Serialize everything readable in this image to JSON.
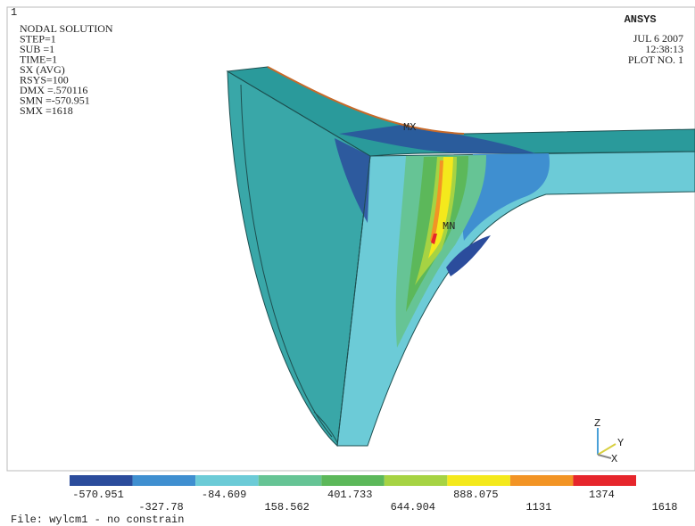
{
  "corner_label": "1",
  "info": [
    "NODAL SOLUTION",
    "STEP=1",
    "SUB =1",
    "TIME=1",
    "SX        (AVG)",
    "RSYS=100",
    "DMX =.570116",
    "SMN =-570.951",
    "SMX =1618"
  ],
  "logo": {
    "bold": "AN",
    "light": "SYS"
  },
  "stamp": [
    "JUL  6 2007",
    "12:38:13",
    "PLOT NO.   1"
  ],
  "markers": {
    "max": "MX",
    "min": "MN"
  },
  "triad": {
    "z": "Z",
    "y": "Y",
    "x": "X"
  },
  "legend": {
    "colors": [
      "#2b4c9c",
      "#3f8fd0",
      "#6ccbd7",
      "#66c495",
      "#5cb85a",
      "#a6d343",
      "#f4e91c",
      "#f29425",
      "#e6262c"
    ],
    "labels": [
      "-570.951",
      "-327.78",
      "-84.609",
      "158.562",
      "401.733",
      "644.904",
      "888.075",
      "1131",
      "1374",
      "1618"
    ]
  },
  "file": "File: wylcm1 - no constrain"
}
